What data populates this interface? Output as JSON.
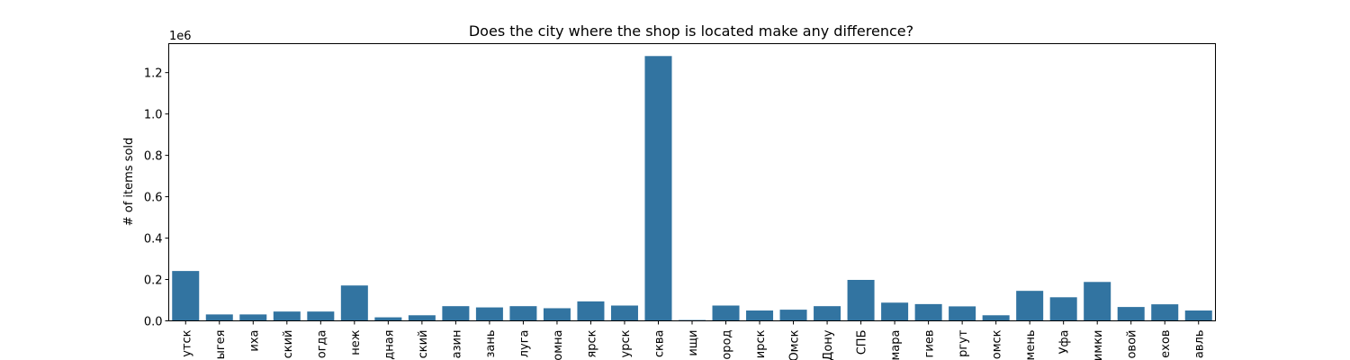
{
  "chart_data": {
    "type": "bar",
    "title": "Does the city where the shop is located make any difference?",
    "xlabel": "",
    "ylabel": "# of items sold",
    "offset_text": "1e6",
    "ylim": [
      0,
      1.34
    ],
    "yticks": [
      0.0,
      0.2,
      0.4,
      0.6,
      0.8,
      1.0,
      1.2
    ],
    "ytick_labels": [
      "0.0",
      "0.2",
      "0.4",
      "0.6",
      "0.8",
      "1.0",
      "1.2"
    ],
    "grid": false,
    "bar_color": "#3274a1",
    "categories": [
      "утск",
      "ыгея",
      "иха",
      "ский",
      "огда",
      "неж",
      "дная",
      "ский",
      "азин",
      "зань",
      "луга",
      "омна",
      "ярск",
      "урск",
      "сква",
      "ищи",
      "ород",
      "ирск",
      "Омск",
      "Дону",
      "СПБ",
      "мара",
      "гиев",
      "ргут",
      "омск",
      "мень",
      "Уфа",
      "имки",
      "овой",
      "ехов",
      "авль"
    ],
    "values": [
      0.241,
      0.031,
      0.031,
      0.045,
      0.045,
      0.171,
      0.017,
      0.027,
      0.071,
      0.065,
      0.071,
      0.061,
      0.094,
      0.074,
      1.28,
      0.004,
      0.074,
      0.05,
      0.054,
      0.071,
      0.198,
      0.088,
      0.081,
      0.07,
      0.027,
      0.145,
      0.114,
      0.188,
      0.067,
      0.08,
      0.05
    ]
  }
}
